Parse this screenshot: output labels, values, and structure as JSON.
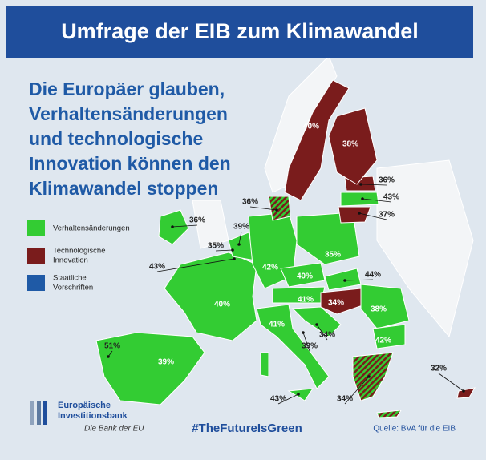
{
  "header": {
    "title": "Umfrage der EIB zum Klimawandel"
  },
  "subtitle": [
    "Die Europäer glauben,",
    "Verhaltensänderungen",
    "und technologische",
    "Innovation können den",
    "Klimawandel stoppen"
  ],
  "legend": [
    [
      "Verhaltensänderungen"
    ],
    [
      "Technologische",
      "Innovation"
    ],
    [
      "Staatliche",
      "Vorschriften"
    ]
  ],
  "map": {
    "labels": [
      "40%",
      "38%",
      "36%",
      "43%",
      "37%",
      "36%",
      "36%",
      "39%",
      "35%",
      "43%",
      "42%",
      "35%",
      "40%",
      "44%",
      "41%",
      "34%",
      "40%",
      "38%",
      "41%",
      "34%",
      "39%",
      "42%",
      "51%",
      "39%",
      "32%",
      "34%",
      "43%"
    ]
  },
  "footer": {
    "bank": [
      "Europäische",
      "Investitionsbank"
    ],
    "tagline": "Die Bank der EU",
    "hashtag": "#TheFutureIsGreen",
    "source": "Quelle: BVA für die EIB"
  }
}
